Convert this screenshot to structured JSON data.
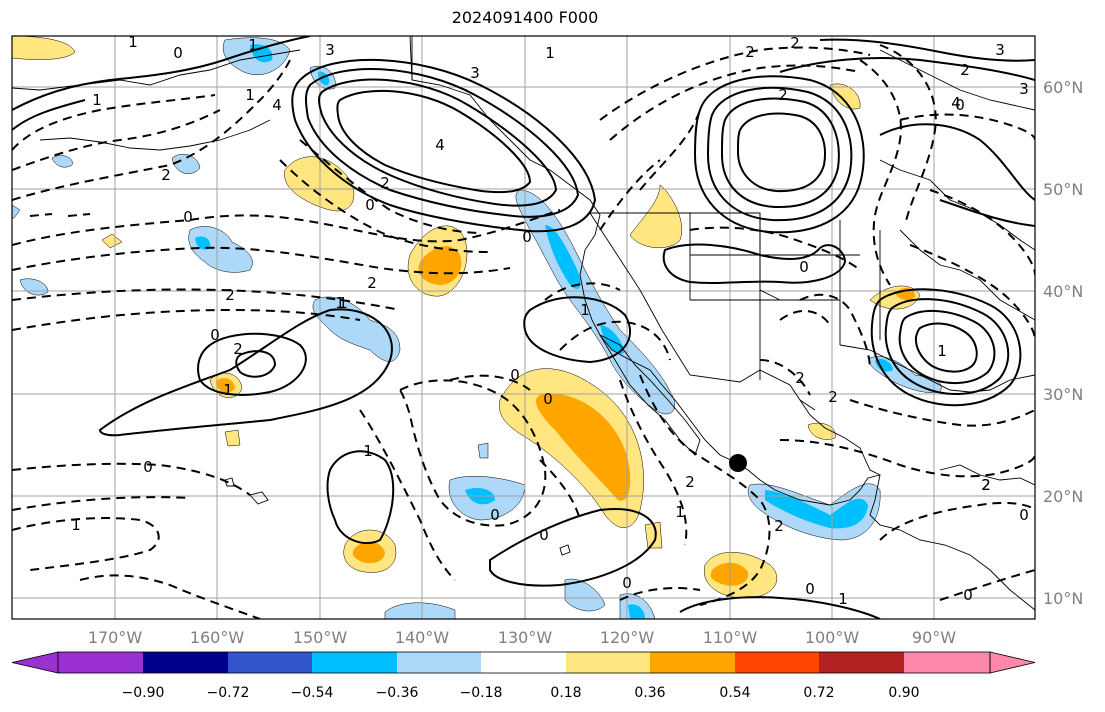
{
  "title": "2024091400 F000",
  "longitude_labels": [
    "170°W",
    "160°W",
    "150°W",
    "140°W",
    "130°W",
    "120°W",
    "110°W",
    "100°W",
    "90°W"
  ],
  "latitude_labels": [
    "60°N",
    "50°N",
    "40°N",
    "30°N",
    "20°N",
    "10°N"
  ],
  "colorbar": {
    "ticks": [
      "−0.90",
      "−0.72",
      "−0.54",
      "−0.36",
      "−0.18",
      "0.18",
      "0.36",
      "0.54",
      "0.72",
      "0.90"
    ],
    "colors": [
      "#9b30d0",
      "#00008b",
      "#3355cc",
      "#00bfff",
      "#add8f7",
      "#ffffff",
      "#ffe680",
      "#ffa500",
      "#ff4500",
      "#b22222",
      "#ff88aa"
    ]
  },
  "shading_colors": {
    "neg_light": "#add8f7",
    "neg_mid": "#00bfff",
    "pos_light": "#ffe680",
    "pos_mid": "#ffa500"
  },
  "contour_labels": [
    "1",
    "0",
    "1",
    "1",
    "3",
    "2",
    "2",
    "3",
    "2",
    "0",
    "1",
    "1",
    "4",
    "3",
    "0",
    "2",
    "2",
    "4",
    "2",
    "0",
    "0",
    "2",
    "0",
    "1",
    "2",
    "2",
    "1",
    "0",
    "0",
    "1",
    "0",
    "1",
    "1",
    "0",
    "0",
    "0",
    "2",
    "2",
    "1",
    "2",
    "2",
    "0",
    "0",
    "3",
    "2",
    "4",
    "1",
    "1",
    "2",
    "0",
    "0",
    "1"
  ],
  "marker": {
    "label": "storm-center"
  }
}
